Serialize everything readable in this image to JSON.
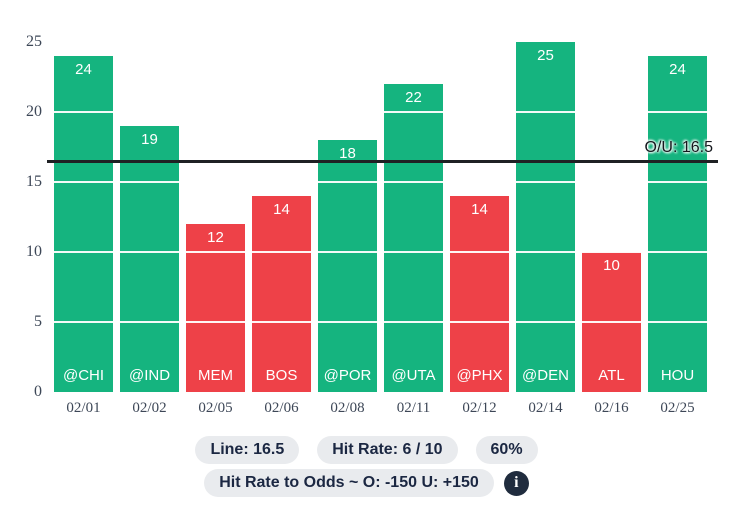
{
  "chart_data": {
    "type": "bar",
    "line": 16.5,
    "line_label": "O/U: 16.5",
    "y_ticks": [
      0,
      5,
      10,
      15,
      20,
      25
    ],
    "ylim": [
      0,
      26
    ],
    "grid_values": [
      5,
      10,
      15,
      20
    ],
    "legend_position": "bottom",
    "colors": {
      "over": "#15b47f",
      "under": "#ee4148",
      "line": "#1f2124",
      "axis_text": "#3d4757"
    },
    "games": [
      {
        "opponent": "@CHI",
        "date": "02/01",
        "value": 24,
        "result": "over"
      },
      {
        "opponent": "@IND",
        "date": "02/02",
        "value": 19,
        "result": "over"
      },
      {
        "opponent": "MEM",
        "date": "02/05",
        "value": 12,
        "result": "under"
      },
      {
        "opponent": "BOS",
        "date": "02/06",
        "value": 14,
        "result": "under"
      },
      {
        "opponent": "@POR",
        "date": "02/08",
        "value": 18,
        "result": "over"
      },
      {
        "opponent": "@UTA",
        "date": "02/11",
        "value": 22,
        "result": "over"
      },
      {
        "opponent": "@PHX",
        "date": "02/12",
        "value": 14,
        "result": "under"
      },
      {
        "opponent": "@DEN",
        "date": "02/14",
        "value": 25,
        "result": "over"
      },
      {
        "opponent": "ATL",
        "date": "02/16",
        "value": 10,
        "result": "under"
      },
      {
        "opponent": "HOU",
        "date": "02/25",
        "value": 24,
        "result": "over"
      }
    ]
  },
  "summary": {
    "line_pill": "Line: 16.5",
    "hit_rate_pill": "Hit Rate: 6 / 10",
    "percent_pill": "60%",
    "odds_pill": "Hit Rate to Odds ~ O: -150 U: +150",
    "info_icon_glyph": "i"
  }
}
